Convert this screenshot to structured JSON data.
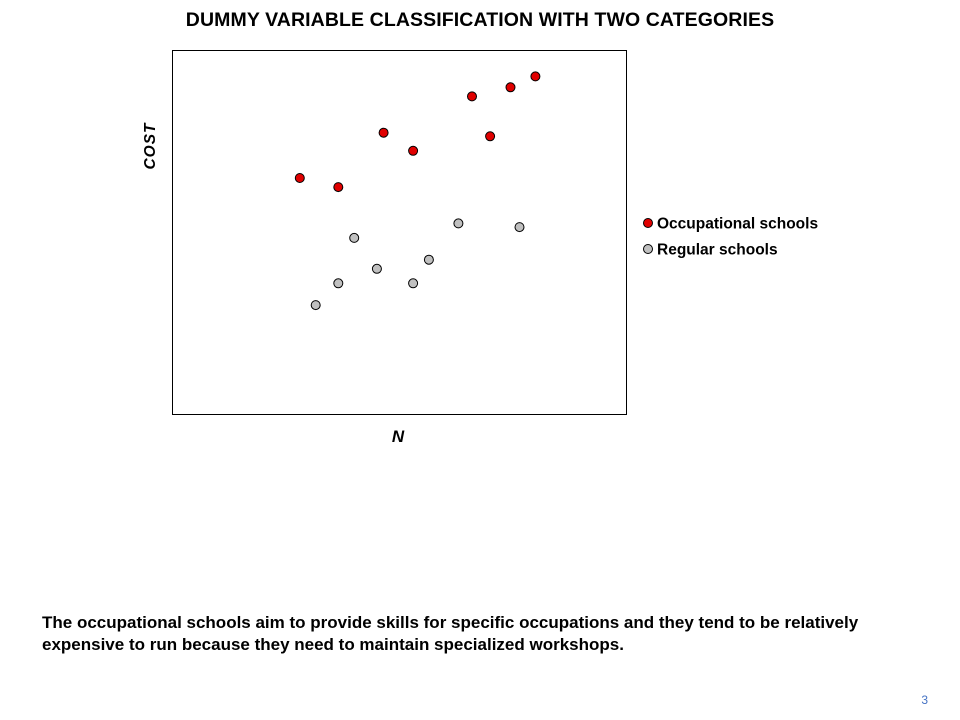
{
  "slide": {
    "title": "DUMMY VARIABLE CLASSIFICATION WITH TWO CATEGORIES",
    "caption": "The occupational schools aim to provide skills for specific occupations and they tend to be relatively expensive to run because they need to maintain specialized workshops.",
    "number": "3"
  },
  "chart_data": {
    "type": "scatter",
    "title": "",
    "xlabel": "N",
    "ylabel": "COST",
    "xlim": [
      0,
      100
    ],
    "ylim": [
      0,
      100
    ],
    "grid": false,
    "legend_position": "right",
    "series": [
      {
        "name": "Occupational schools",
        "color": "#e00000",
        "points": [
          {
            "x": 28,
            "y": 65
          },
          {
            "x": 36.5,
            "y": 62.5
          },
          {
            "x": 46.5,
            "y": 77.5
          },
          {
            "x": 53,
            "y": 72.5
          },
          {
            "x": 66,
            "y": 87.5
          },
          {
            "x": 70,
            "y": 76.5
          },
          {
            "x": 74.5,
            "y": 90
          },
          {
            "x": 80,
            "y": 93
          }
        ]
      },
      {
        "name": "Regular schools",
        "color": "#c0c0c0",
        "points": [
          {
            "x": 31.5,
            "y": 30
          },
          {
            "x": 36.5,
            "y": 36
          },
          {
            "x": 40,
            "y": 48.5
          },
          {
            "x": 45,
            "y": 40
          },
          {
            "x": 53,
            "y": 36
          },
          {
            "x": 56.5,
            "y": 42.5
          },
          {
            "x": 63,
            "y": 52.5
          },
          {
            "x": 76.5,
            "y": 51.5
          }
        ]
      }
    ]
  }
}
